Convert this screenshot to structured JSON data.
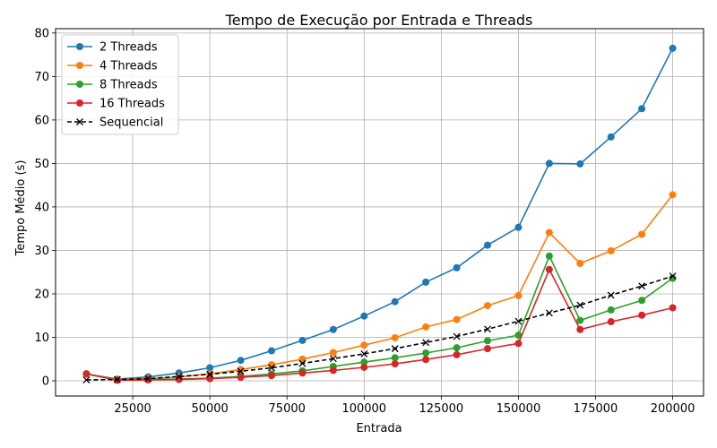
{
  "chart_data": {
    "type": "line",
    "title": "Tempo de Execução por Entrada e Threads",
    "xlabel": "Entrada",
    "ylabel": "Tempo Médio (s)",
    "xlim": [
      0,
      210000
    ],
    "ylim": [
      -3.5,
      81
    ],
    "xticks": [
      25000,
      50000,
      75000,
      100000,
      125000,
      150000,
      175000,
      200000
    ],
    "yticks": [
      0,
      10,
      20,
      30,
      40,
      50,
      60,
      70,
      80
    ],
    "grid": true,
    "legend_position": "top-left",
    "x": [
      10000,
      20000,
      30000,
      40000,
      50000,
      60000,
      70000,
      80000,
      90000,
      100000,
      110000,
      120000,
      130000,
      140000,
      150000,
      160000,
      170000,
      180000,
      190000,
      200000
    ],
    "series": [
      {
        "name": "2 Threads",
        "color": "#1f77b4",
        "marker": "circle",
        "dashed": false,
        "values": [
          1.6,
          0.4,
          0.9,
          1.8,
          3.0,
          4.7,
          6.9,
          9.3,
          11.8,
          14.9,
          18.2,
          22.7,
          26.0,
          31.2,
          35.3,
          50.0,
          49.9,
          56.1,
          62.6,
          76.5
        ]
      },
      {
        "name": "4 Threads",
        "color": "#ff7f0e",
        "marker": "circle",
        "dashed": false,
        "values": [
          1.6,
          0.3,
          0.5,
          0.9,
          1.6,
          2.6,
          3.7,
          5.0,
          6.5,
          8.2,
          9.9,
          12.4,
          14.1,
          17.3,
          19.6,
          34.1,
          27.0,
          29.9,
          33.7,
          42.8
        ]
      },
      {
        "name": "8 Threads",
        "color": "#2ca02c",
        "marker": "circle",
        "dashed": false,
        "values": [
          1.6,
          0.2,
          0.3,
          0.4,
          0.6,
          1.0,
          1.6,
          2.3,
          3.3,
          4.3,
          5.3,
          6.4,
          7.6,
          9.2,
          10.5,
          28.7,
          13.9,
          16.3,
          18.5,
          23.6
        ]
      },
      {
        "name": "16 Threads",
        "color": "#d62728",
        "marker": "circle",
        "dashed": false,
        "values": [
          1.6,
          0.1,
          0.2,
          0.3,
          0.5,
          0.8,
          1.2,
          1.8,
          2.4,
          3.1,
          3.9,
          4.9,
          6.0,
          7.4,
          8.6,
          25.6,
          11.8,
          13.6,
          15.1,
          16.8
        ]
      },
      {
        "name": "Sequencial",
        "color": "#000000",
        "marker": "x",
        "dashed": true,
        "values": [
          0.2,
          0.3,
          0.5,
          1.0,
          1.5,
          2.2,
          3.0,
          4.0,
          5.1,
          6.2,
          7.4,
          8.8,
          10.2,
          11.9,
          13.7,
          15.6,
          17.4,
          19.7,
          21.8,
          24.1
        ]
      }
    ]
  }
}
